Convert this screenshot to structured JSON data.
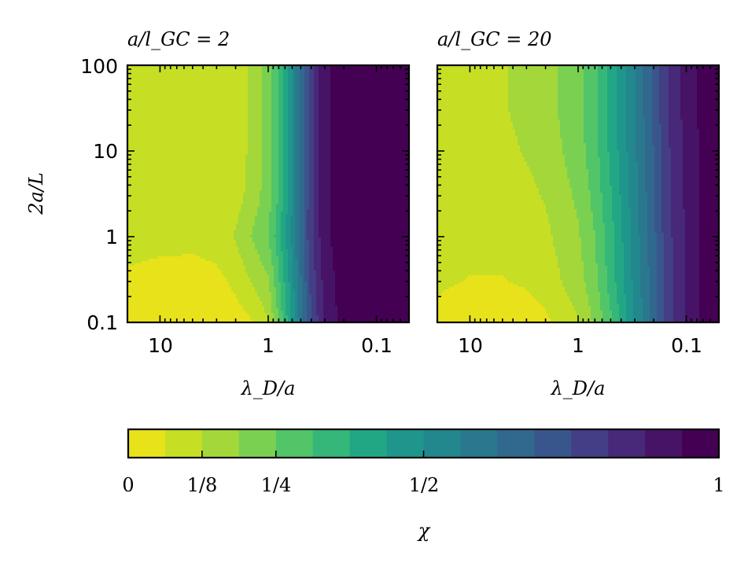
{
  "chart_data": [
    {
      "type": "contour",
      "title": "a/l_GC = 2",
      "xlabel": "λ_D/a",
      "ylabel": "2a/L",
      "x_scale": "log",
      "x_reversed": true,
      "xlim": [
        20,
        0.05
      ],
      "y_scale": "log",
      "ylim": [
        0.1,
        100
      ],
      "x_ticks": [
        10,
        1,
        0.1
      ],
      "x_tick_labels": [
        "10",
        "1",
        "0.1"
      ],
      "y_ticks": [
        0.1,
        1,
        10,
        100
      ],
      "y_tick_labels": [
        "0.1",
        "1",
        "10",
        "100"
      ],
      "field": {
        "x_grid": [
          20,
          10,
          5,
          3,
          2,
          1.5,
          1,
          0.8,
          0.6,
          0.5,
          0.4,
          0.3,
          0.2,
          0.1,
          0.05
        ],
        "y_grid": [
          0.1,
          0.3,
          1,
          3,
          10,
          30,
          100
        ],
        "chi": [
          [
            0.03,
            0.02,
            0.0,
            0.01,
            0.03,
            0.05,
            0.12,
            0.25,
            0.45,
            0.6,
            0.75,
            0.88,
            0.97,
            1.0,
            1.0
          ],
          [
            0.05,
            0.03,
            0.02,
            0.04,
            0.08,
            0.12,
            0.18,
            0.3,
            0.48,
            0.62,
            0.77,
            0.9,
            0.97,
            1.0,
            1.0
          ],
          [
            0.09,
            0.09,
            0.09,
            0.1,
            0.13,
            0.18,
            0.25,
            0.35,
            0.52,
            0.65,
            0.8,
            0.92,
            0.98,
            1.0,
            1.0
          ],
          [
            0.09,
            0.09,
            0.09,
            0.09,
            0.1,
            0.14,
            0.22,
            0.32,
            0.5,
            0.64,
            0.8,
            0.92,
            0.98,
            1.0,
            1.0
          ],
          [
            0.09,
            0.09,
            0.09,
            0.09,
            0.1,
            0.13,
            0.21,
            0.32,
            0.5,
            0.64,
            0.8,
            0.92,
            0.98,
            1.0,
            1.0
          ],
          [
            0.09,
            0.09,
            0.09,
            0.09,
            0.1,
            0.13,
            0.21,
            0.32,
            0.5,
            0.64,
            0.8,
            0.92,
            0.98,
            1.0,
            1.0
          ],
          [
            0.09,
            0.09,
            0.09,
            0.09,
            0.1,
            0.13,
            0.21,
            0.32,
            0.5,
            0.64,
            0.8,
            0.92,
            0.98,
            1.0,
            1.0
          ]
        ]
      }
    },
    {
      "type": "contour",
      "title": "a/l_GC = 20",
      "xlabel": "λ_D/a",
      "ylabel": "",
      "x_scale": "log",
      "x_reversed": true,
      "xlim": [
        20,
        0.05
      ],
      "y_scale": "log",
      "ylim": [
        0.1,
        100
      ],
      "x_ticks": [
        10,
        1,
        0.1
      ],
      "x_tick_labels": [
        "10",
        "1",
        "0.1"
      ],
      "y_tick_labels_visible": false,
      "field": {
        "x_grid": [
          20,
          10,
          5,
          3,
          2,
          1.5,
          1,
          0.7,
          0.5,
          0.3,
          0.2,
          0.15,
          0.1,
          0.07,
          0.05
        ],
        "y_grid": [
          0.1,
          0.3,
          1,
          3,
          10,
          30,
          100
        ],
        "chi": [
          [
            0.05,
            0.03,
            0.02,
            0.03,
            0.05,
            0.08,
            0.12,
            0.2,
            0.3,
            0.5,
            0.65,
            0.78,
            0.88,
            0.95,
            1.0
          ],
          [
            0.07,
            0.06,
            0.06,
            0.07,
            0.09,
            0.12,
            0.16,
            0.23,
            0.34,
            0.52,
            0.66,
            0.78,
            0.88,
            0.95,
            1.0
          ],
          [
            0.08,
            0.08,
            0.08,
            0.09,
            0.11,
            0.14,
            0.18,
            0.25,
            0.35,
            0.53,
            0.67,
            0.79,
            0.88,
            0.95,
            1.0
          ],
          [
            0.09,
            0.09,
            0.1,
            0.11,
            0.13,
            0.16,
            0.2,
            0.27,
            0.37,
            0.54,
            0.68,
            0.8,
            0.89,
            0.95,
            1.0
          ],
          [
            0.09,
            0.1,
            0.11,
            0.13,
            0.15,
            0.18,
            0.22,
            0.29,
            0.39,
            0.55,
            0.69,
            0.8,
            0.89,
            0.95,
            1.0
          ],
          [
            0.1,
            0.11,
            0.12,
            0.14,
            0.16,
            0.19,
            0.23,
            0.3,
            0.4,
            0.56,
            0.7,
            0.81,
            0.9,
            0.96,
            1.0
          ],
          [
            0.1,
            0.11,
            0.12,
            0.14,
            0.16,
            0.19,
            0.23,
            0.3,
            0.4,
            0.56,
            0.7,
            0.81,
            0.9,
            0.96,
            1.0
          ]
        ]
      }
    }
  ],
  "colorbar": {
    "label": "χ",
    "range": [
      0,
      1
    ],
    "n_levels": 16,
    "tick_values": [
      0,
      0.125,
      0.25,
      0.5,
      1
    ],
    "tick_labels": [
      "0",
      "1/8",
      "1/4",
      "1/2",
      "1"
    ],
    "colors": [
      "#e8e21b",
      "#c6df24",
      "#a4d73a",
      "#7ad151",
      "#52c569",
      "#35b779",
      "#22a785",
      "#1f968b",
      "#23888e",
      "#2a788e",
      "#31688e",
      "#39568c",
      "#433e85",
      "#482878",
      "#471366",
      "#440154"
    ]
  }
}
